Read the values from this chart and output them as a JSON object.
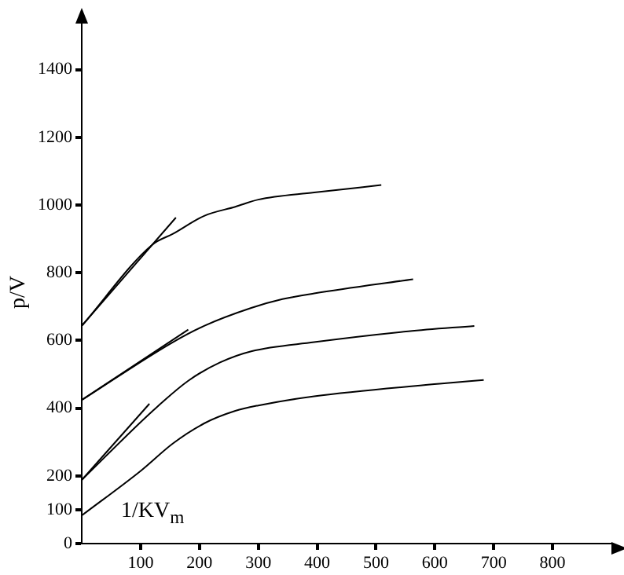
{
  "chart_data": {
    "type": "line",
    "xlabel": "1/KV$_{m}$",
    "ylabel": "p/V",
    "xlim": [
      0,
      900
    ],
    "xticks": [
      100,
      200,
      300,
      400,
      500,
      600,
      700,
      800
    ],
    "ylim": [
      0,
      1550
    ],
    "yticks": [
      0,
      100,
      200,
      400,
      600,
      800,
      1000,
      1200,
      1400
    ],
    "grid": false,
    "legend": false,
    "marker": "none",
    "line_style": "solid",
    "series": [
      {
        "color": "#000000",
        "x": [
          0,
          120,
          155,
          208,
          261,
          300,
          395,
          509
        ],
        "values": [
          643,
          883,
          915,
          968,
          995,
          1016,
          1037,
          1059
        ]
      },
      {
        "color": "#000000",
        "x": [
          0,
          160
        ],
        "values": [
          643,
          963
        ]
      },
      {
        "color": "#000000",
        "x": [
          0,
          155,
          208,
          288,
          341,
          395,
          563
        ],
        "values": [
          424,
          595,
          643,
          696,
          722,
          739,
          781
        ]
      },
      {
        "color": "#000000",
        "x": [
          0,
          181
        ],
        "values": [
          424,
          632
        ]
      },
      {
        "color": "#000000",
        "x": [
          0,
          120,
          181,
          235,
          288,
          395,
          555,
          667
        ],
        "values": [
          188,
          391,
          481,
          535,
          568,
          595,
          627,
          643
        ]
      },
      {
        "color": "#000000",
        "x": [
          0,
          115
        ],
        "values": [
          188,
          413
        ]
      },
      {
        "color": "#000000",
        "x": [
          0,
          101,
          155,
          208,
          261,
          300,
          395,
          608,
          683
        ],
        "values": [
          83,
          216,
          296,
          355,
          392,
          408,
          435,
          472,
          483
        ]
      }
    ]
  }
}
